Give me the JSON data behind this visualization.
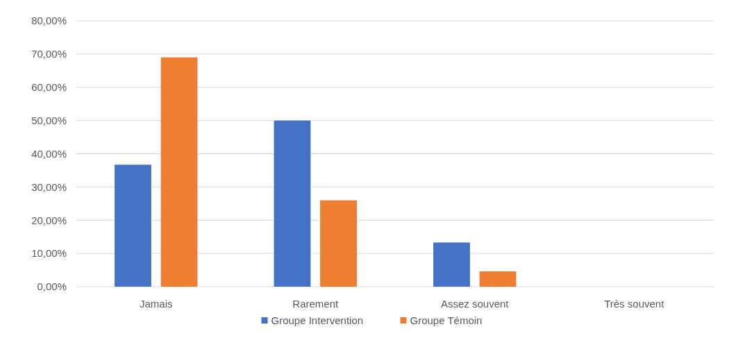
{
  "chart_data": {
    "type": "bar",
    "categories": [
      "Jamais",
      "Rarement",
      "Assez souvent",
      "Très souvent"
    ],
    "series": [
      {
        "name": "Groupe Intervention",
        "color": "#4472c4",
        "values": [
          36.7,
          50,
          13.3,
          0
        ]
      },
      {
        "name": "Groupe Témoin",
        "color": "#ed7d31",
        "values": [
          69,
          26,
          4.6,
          0
        ]
      }
    ],
    "ylim": [
      0,
      80
    ],
    "yticks": [
      {
        "value": 0,
        "label": "0,00%"
      },
      {
        "value": 10,
        "label": "10,00%"
      },
      {
        "value": 20,
        "label": "20,00%"
      },
      {
        "value": 30,
        "label": "30,00%"
      },
      {
        "value": 40,
        "label": "40,00%"
      },
      {
        "value": 50,
        "label": "50,00%"
      },
      {
        "value": 60,
        "label": "60,00%"
      },
      {
        "value": 70,
        "label": "70,00%"
      },
      {
        "value": 80,
        "label": "80,00%"
      }
    ],
    "grid": "y",
    "legend": "bottom"
  }
}
